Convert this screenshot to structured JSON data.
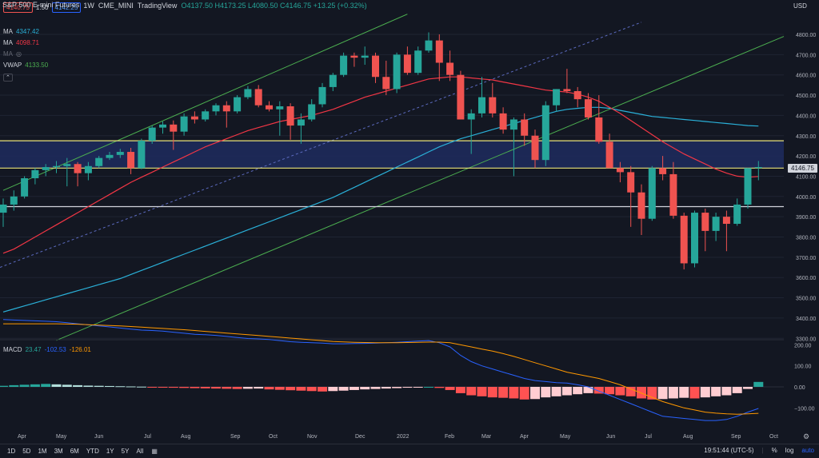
{
  "header": {
    "symbol": "S&P 500 E-mini Futures",
    "interval": "1W",
    "exchange": "CME_MINI",
    "source": "TradingView",
    "ohlc": "O4137.50 H4173.25 L4080.50 C4146.75 +13.25 (+0.32%)",
    "bid": "4140.75",
    "spread": "1.50",
    "ask": "4142.25"
  },
  "indicators": {
    "ma1_label": "MA",
    "ma1_value": "4347.42",
    "ma2_label": "MA",
    "ma2_value": "4098.71",
    "ma3_label": "MA",
    "vwap_label": "VWAP",
    "vwap_value": "4133.50",
    "macd_label": "MACD",
    "macd_v1": "23.47",
    "macd_v2": "-102.53",
    "macd_v3": "-126.01"
  },
  "price_axis": {
    "currency": "USD",
    "ticks": [
      "4800.00",
      "4700.00",
      "4600.00",
      "4500.00",
      "4400.00",
      "4300.00",
      "4200.00",
      "4100.00",
      "4000.00",
      "3900.00",
      "3800.00",
      "3700.00",
      "3600.00",
      "3500.00",
      "3400.00",
      "3300.00"
    ],
    "last_price": "4146.75"
  },
  "macd_axis": {
    "ticks": [
      "200.00",
      "100.00",
      "0.00",
      "−100.00"
    ]
  },
  "time_axis": {
    "ticks": [
      "Apr",
      "May",
      "Jun",
      "Jul",
      "Aug",
      "Sep",
      "Oct",
      "Nov",
      "Dec",
      "2022",
      "Feb",
      "Mar",
      "Apr",
      "May",
      "Jun",
      "Jul",
      "Aug",
      "Sep",
      "Oct"
    ]
  },
  "bottom": {
    "timeframes": [
      "1D",
      "5D",
      "1M",
      "3M",
      "6M",
      "YTD",
      "1Y",
      "5Y",
      "All"
    ],
    "clock": "19:51:44 (UTC-5)",
    "percent": "%",
    "log": "log",
    "auto": "auto"
  },
  "colors": {
    "up": "#26a69a",
    "down": "#ef5350",
    "ma_fast": "#f23645",
    "ma_slow": "#2ab0d8",
    "channel": "#4caf50",
    "zone": "#1e2b5e"
  },
  "chart_data": {
    "type": "candlestick",
    "title": "S&P 500 E-mini Futures, 1W, CME_MINI",
    "ylim": [
      3300,
      4850
    ],
    "weeks": [
      "2021-03-22",
      "2021-03-29",
      "2021-04-05",
      "2021-04-12",
      "2021-04-19",
      "2021-04-26",
      "2021-05-03",
      "2021-05-10",
      "2021-05-17",
      "2021-05-24",
      "2021-05-31",
      "2021-06-07",
      "2021-06-14",
      "2021-06-21",
      "2021-06-28",
      "2021-07-05",
      "2021-07-12",
      "2021-07-19",
      "2021-07-26",
      "2021-08-02",
      "2021-08-09",
      "2021-08-16",
      "2021-08-23",
      "2021-08-30",
      "2021-09-06",
      "2021-09-13",
      "2021-09-20",
      "2021-09-27",
      "2021-10-04",
      "2021-10-11",
      "2021-10-18",
      "2021-10-25",
      "2021-11-01",
      "2021-11-08",
      "2021-11-15",
      "2021-11-22",
      "2021-11-29",
      "2021-12-06",
      "2021-12-13",
      "2021-12-20",
      "2021-12-27",
      "2022-01-03",
      "2022-01-10",
      "2022-01-17",
      "2022-01-24",
      "2022-01-31",
      "2022-02-07",
      "2022-02-14",
      "2022-02-21",
      "2022-02-28",
      "2022-03-07",
      "2022-03-14",
      "2022-03-21",
      "2022-03-28",
      "2022-04-04",
      "2022-04-11",
      "2022-04-18",
      "2022-04-25",
      "2022-05-02",
      "2022-05-09",
      "2022-05-16",
      "2022-05-23",
      "2022-05-30",
      "2022-06-06",
      "2022-06-13",
      "2022-06-20",
      "2022-06-27",
      "2022-07-04",
      "2022-07-11",
      "2022-07-18",
      "2022-07-25",
      "2022-08-01"
    ],
    "ohlc": [
      [
        3920,
        3990,
        3850,
        3960
      ],
      [
        3960,
        4030,
        3930,
        4000
      ],
      [
        4000,
        4100,
        3990,
        4090
      ],
      [
        4090,
        4140,
        4060,
        4130
      ],
      [
        4130,
        4160,
        4100,
        4145
      ],
      [
        4145,
        4175,
        4115,
        4150
      ],
      [
        4150,
        4190,
        4050,
        4160
      ],
      [
        4160,
        4170,
        4050,
        4115
      ],
      [
        4115,
        4170,
        4080,
        4150
      ],
      [
        4150,
        4200,
        4140,
        4190
      ],
      [
        4190,
        4220,
        4180,
        4205
      ],
      [
        4205,
        4235,
        4190,
        4220
      ],
      [
        4220,
        4240,
        4110,
        4140
      ],
      [
        4140,
        4285,
        4135,
        4275
      ],
      [
        4275,
        4350,
        4260,
        4340
      ],
      [
        4340,
        4370,
        4310,
        4355
      ],
      [
        4355,
        4375,
        4230,
        4320
      ],
      [
        4320,
        4410,
        4300,
        4395
      ],
      [
        4395,
        4420,
        4360,
        4380
      ],
      [
        4380,
        4430,
        4370,
        4420
      ],
      [
        4420,
        4460,
        4400,
        4450
      ],
      [
        4450,
        4470,
        4340,
        4420
      ],
      [
        4420,
        4500,
        4410,
        4490
      ],
      [
        4490,
        4545,
        4480,
        4530
      ],
      [
        4530,
        4550,
        4440,
        4450
      ],
      [
        4450,
        4470,
        4420,
        4430
      ],
      [
        4430,
        4470,
        4300,
        4445
      ],
      [
        4445,
        4460,
        4280,
        4350
      ],
      [
        4350,
        4410,
        4260,
        4380
      ],
      [
        4380,
        4480,
        4370,
        4455
      ],
      [
        4455,
        4560,
        4440,
        4540
      ],
      [
        4540,
        4610,
        4520,
        4600
      ],
      [
        4600,
        4710,
        4590,
        4695
      ],
      [
        4695,
        4710,
        4640,
        4685
      ],
      [
        4685,
        4740,
        4650,
        4695
      ],
      [
        4695,
        4710,
        4560,
        4590
      ],
      [
        4590,
        4670,
        4500,
        4530
      ],
      [
        4530,
        4710,
        4510,
        4700
      ],
      [
        4700,
        4740,
        4600,
        4610
      ],
      [
        4610,
        4740,
        4600,
        4720
      ],
      [
        4720,
        4810,
        4710,
        4770
      ],
      [
        4770,
        4800,
        4570,
        4660
      ],
      [
        4660,
        4720,
        4570,
        4600
      ],
      [
        4600,
        4620,
        4380,
        4380
      ],
      [
        4380,
        4430,
        4210,
        4410
      ],
      [
        4410,
        4590,
        4390,
        4490
      ],
      [
        4490,
        4560,
        4390,
        4410
      ],
      [
        4410,
        4440,
        4310,
        4330
      ],
      [
        4330,
        4390,
        4100,
        4380
      ],
      [
        4380,
        4410,
        4250,
        4300
      ],
      [
        4300,
        4330,
        4140,
        4180
      ],
      [
        4180,
        4470,
        4150,
        4450
      ],
      [
        4450,
        4530,
        4420,
        4530
      ],
      [
        4530,
        4630,
        4510,
        4520
      ],
      [
        4520,
        4540,
        4440,
        4480
      ],
      [
        4480,
        4510,
        4380,
        4390
      ],
      [
        4390,
        4500,
        4260,
        4270
      ],
      [
        4270,
        4310,
        4140,
        4140
      ],
      [
        4140,
        4170,
        4070,
        4120
      ],
      [
        4120,
        4150,
        3850,
        4020
      ],
      [
        4020,
        4060,
        3810,
        3890
      ],
      [
        3890,
        4150,
        3880,
        4140
      ],
      [
        4140,
        4200,
        4080,
        4110
      ],
      [
        4110,
        4170,
        3890,
        3905
      ],
      [
        3905,
        3920,
        3640,
        3670
      ],
      [
        3670,
        3930,
        3650,
        3920
      ],
      [
        3920,
        3940,
        3730,
        3830
      ],
      [
        3830,
        3920,
        3780,
        3900
      ],
      [
        3900,
        3930,
        3730,
        3865
      ],
      [
        3865,
        3990,
        3855,
        3960
      ],
      [
        3960,
        4140,
        3940,
        4140
      ],
      [
        4140,
        4175,
        4080,
        4145
      ]
    ],
    "ma_fast": [
      3720,
      3740,
      3770,
      3800,
      3830,
      3860,
      3890,
      3920,
      3950,
      3980,
      4010,
      4040,
      4070,
      4095,
      4120,
      4145,
      4170,
      4195,
      4220,
      4245,
      4265,
      4285,
      4305,
      4325,
      4340,
      4355,
      4370,
      4380,
      4390,
      4400,
      4415,
      4430,
      4450,
      4470,
      4490,
      4505,
      4520,
      4535,
      4550,
      4565,
      4580,
      4585,
      4590,
      4590,
      4585,
      4580,
      4575,
      4565,
      4555,
      4545,
      4535,
      4525,
      4520,
      4515,
      4505,
      4490,
      4470,
      4440,
      4410,
      4375,
      4340,
      4305,
      4270,
      4240,
      4210,
      4185,
      4160,
      4135,
      4115,
      4100,
      4095,
      4098.71
    ],
    "ma_slow": [
      3430,
      3445,
      3460,
      3475,
      3490,
      3505,
      3520,
      3535,
      3550,
      3565,
      3580,
      3595,
      3615,
      3635,
      3655,
      3675,
      3695,
      3715,
      3735,
      3755,
      3775,
      3795,
      3815,
      3835,
      3855,
      3875,
      3895,
      3915,
      3935,
      3955,
      3975,
      3995,
      4020,
      4045,
      4070,
      4095,
      4120,
      4145,
      4170,
      4195,
      4220,
      4245,
      4265,
      4285,
      4300,
      4315,
      4330,
      4345,
      4360,
      4375,
      4390,
      4405,
      4420,
      4430,
      4435,
      4440,
      4440,
      4435,
      4425,
      4415,
      4405,
      4395,
      4390,
      4385,
      4380,
      4375,
      4370,
      4365,
      4360,
      4355,
      4350,
      4347.42
    ],
    "macd_hist": [
      5,
      8,
      10,
      12,
      14,
      12,
      10,
      8,
      6,
      5,
      4,
      3,
      2,
      1,
      -2,
      -3,
      -4,
      -5,
      -6,
      -7,
      -8,
      -9,
      -10,
      -9,
      -8,
      -12,
      -14,
      -16,
      -18,
      -20,
      -22,
      -20,
      -18,
      -15,
      -12,
      -10,
      -8,
      -6,
      -4,
      -2,
      0,
      -5,
      -15,
      -30,
      -40,
      -45,
      -50,
      -52,
      -55,
      -60,
      -58,
      -50,
      -45,
      -40,
      -35,
      -30,
      -32,
      -35,
      -40,
      -45,
      -55,
      -60,
      -58,
      -55,
      -52,
      -55,
      -50,
      -45,
      -40,
      -30,
      -10,
      23.47
    ],
    "macd_line": [
      320,
      318,
      316,
      314,
      312,
      310,
      305,
      300,
      295,
      290,
      285,
      280,
      275,
      270,
      268,
      265,
      260,
      255,
      250,
      248,
      245,
      240,
      235,
      230,
      228,
      225,
      220,
      215,
      212,
      210,
      208,
      205,
      205,
      206,
      207,
      208,
      210,
      212,
      215,
      218,
      220,
      210,
      190,
      150,
      120,
      100,
      85,
      70,
      55,
      40,
      30,
      25,
      20,
      18,
      10,
      0,
      -20,
      -40,
      -60,
      -80,
      -100,
      -120,
      -140,
      -145,
      -150,
      -155,
      -160,
      -160,
      -155,
      -140,
      -120,
      -102.53
    ],
    "macd_signal": [
      300,
      300,
      300,
      300,
      300,
      300,
      299,
      298,
      296,
      294,
      292,
      290,
      287,
      284,
      281,
      278,
      275,
      272,
      268,
      264,
      260,
      256,
      252,
      248,
      244,
      240,
      236,
      232,
      228,
      224,
      220,
      216,
      214,
      212,
      211,
      210,
      210,
      210,
      211,
      212,
      213,
      213,
      210,
      200,
      190,
      180,
      170,
      158,
      145,
      130,
      115,
      100,
      85,
      70,
      60,
      50,
      40,
      25,
      10,
      -10,
      -30,
      -50,
      -70,
      -85,
      -100,
      -110,
      -120,
      -125,
      -128,
      -130,
      -128,
      -126.01
    ],
    "horizontal_levels": [
      4275,
      4140,
      3950
    ]
  }
}
